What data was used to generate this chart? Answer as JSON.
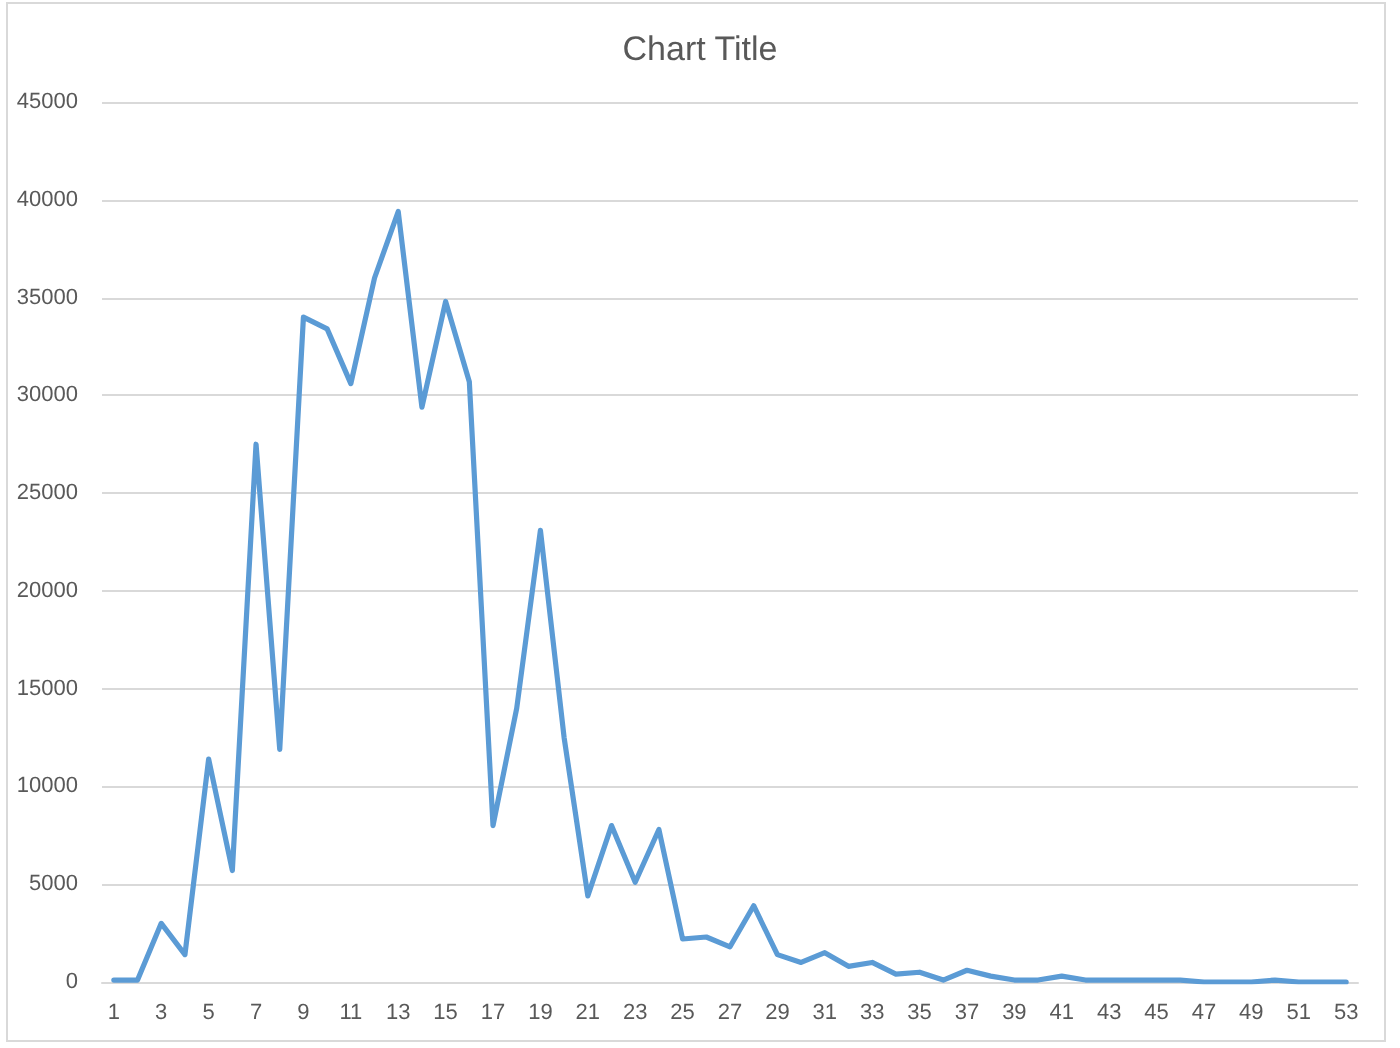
{
  "chart_data": {
    "type": "line",
    "title": "Chart Title",
    "x": [
      1,
      2,
      3,
      4,
      5,
      6,
      7,
      8,
      9,
      10,
      11,
      12,
      13,
      14,
      15,
      16,
      17,
      18,
      19,
      20,
      21,
      22,
      23,
      24,
      25,
      26,
      27,
      28,
      29,
      30,
      31,
      32,
      33,
      34,
      35,
      36,
      37,
      38,
      39,
      40,
      41,
      42,
      43,
      44,
      45,
      46,
      47,
      48,
      49,
      50,
      51,
      52,
      53
    ],
    "values": [
      100,
      100,
      3000,
      1400,
      11400,
      5700,
      27500,
      11900,
      34000,
      33400,
      30600,
      36000,
      39400,
      29400,
      34800,
      30700,
      8000,
      14000,
      23100,
      12500,
      4400,
      8000,
      5100,
      7800,
      2200,
      2300,
      1800,
      3900,
      1400,
      1000,
      1500,
      800,
      1000,
      400,
      500,
      100,
      600,
      300,
      100,
      100,
      300,
      100,
      100,
      100,
      100,
      100,
      0,
      0,
      0,
      100,
      0,
      0,
      0
    ],
    "color": "#5b9bd5",
    "xlim": [
      0.5,
      53.5
    ],
    "xticks": [
      1,
      3,
      5,
      7,
      9,
      11,
      13,
      15,
      17,
      19,
      21,
      23,
      25,
      27,
      29,
      31,
      33,
      35,
      37,
      39,
      41,
      43,
      45,
      47,
      49,
      51,
      53
    ],
    "ylim": [
      0,
      45000
    ],
    "yticks": [
      0,
      5000,
      10000,
      15000,
      20000,
      25000,
      30000,
      35000,
      40000,
      45000
    ],
    "grid": "y",
    "marker": "none"
  }
}
